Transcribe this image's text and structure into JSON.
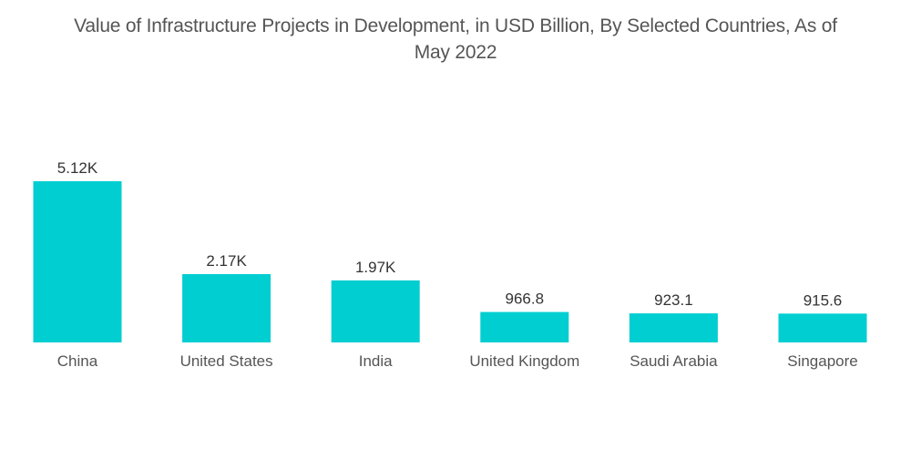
{
  "chart_data": {
    "type": "bar",
    "title_lines": [
      "Value of Infrastructure Projects in Development, in USD Billion, By Selected Countries, As of",
      "May 2022"
    ],
    "title": "Value of Infrastructure Projects in Development, in USD Billion, By Selected Countries, As of May 2022",
    "xlabel": "",
    "ylabel": "",
    "categories": [
      "China",
      "United States",
      "India",
      "United Kingdom",
      "Saudi Arabia",
      "Singapore"
    ],
    "values": [
      5120,
      2170,
      1970,
      966.8,
      923.1,
      915.6
    ],
    "data_labels": [
      "5.12K",
      "2.17K",
      "1.97K",
      "966.8",
      "923.1",
      "915.6"
    ],
    "ylim": [
      0,
      5120
    ],
    "grid": false,
    "legend": "none",
    "bar_color": "#00CED1"
  }
}
